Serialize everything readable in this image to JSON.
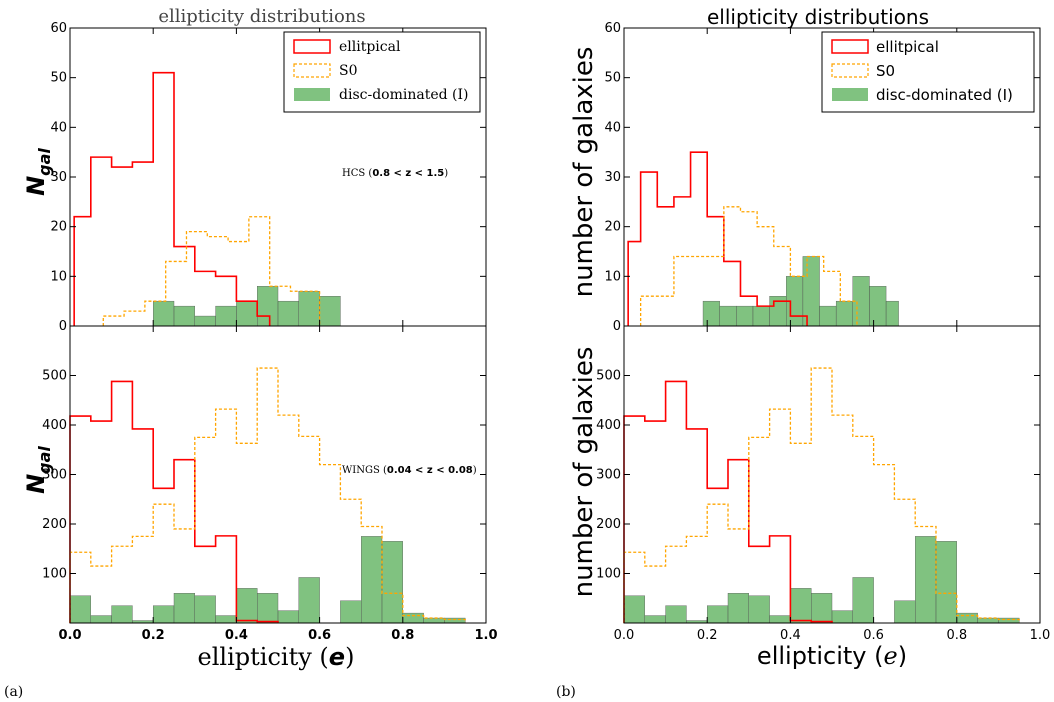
{
  "panel_labels": [
    "(a)",
    "(b)"
  ],
  "chart_data": [
    {
      "type": "histogram",
      "panel": "(a)",
      "title": "ellipticity distributions",
      "xlabel_text": "ellipticity (",
      "xlabel_symbol": "e",
      "xlabel_close": ")",
      "ylabel_main": "N",
      "ylabel_sub": "gal",
      "xlim": [
        0,
        1
      ],
      "xticks": [
        "0.0",
        "0.2",
        "0.4",
        "0.6",
        "0.8",
        "1.0"
      ],
      "legend": {
        "position": "top-right",
        "entries": [
          "ellitpical",
          "S0",
          "disc-dominated (I)"
        ]
      },
      "colors": {
        "elliptical": "#ff0000",
        "s0": "#ffa500",
        "disc": "#4aa84a"
      },
      "subplots": [
        {
          "ylim": [
            0,
            60
          ],
          "yticks": [
            "0",
            "10",
            "20",
            "30",
            "40",
            "50",
            "60"
          ],
          "annotation": {
            "sample": "HCS (",
            "range": "0.8 < z < 1.5",
            "close": ")"
          },
          "series": [
            {
              "name": "ellitpical",
              "style": "step",
              "edges": [
                0.01,
                0.05,
                0.1,
                0.15,
                0.2,
                0.25,
                0.3,
                0.35,
                0.4,
                0.45,
                0.48
              ],
              "values": [
                22,
                34,
                32,
                33,
                51,
                16,
                11,
                10,
                5,
                2
              ]
            },
            {
              "name": "S0",
              "style": "step-dashed",
              "edges": [
                0.08,
                0.13,
                0.18,
                0.23,
                0.28,
                0.33,
                0.38,
                0.43,
                0.48,
                0.53,
                0.58,
                0.6
              ],
              "values": [
                2,
                3,
                5,
                13,
                19,
                18,
                17,
                22,
                8,
                7,
                7
              ]
            },
            {
              "name": "disc-dominated (I)",
              "style": "filled",
              "edges": [
                0.2,
                0.25,
                0.3,
                0.35,
                0.4,
                0.45,
                0.5,
                0.55,
                0.6,
                0.65
              ],
              "values": [
                5,
                4,
                2,
                4,
                5,
                8,
                5,
                7,
                6
              ]
            }
          ]
        },
        {
          "ylim": [
            0,
            600
          ],
          "yticks": [
            "100",
            "200",
            "300",
            "400",
            "500"
          ],
          "annotation": {
            "sample": "WINGS (",
            "range": "0.04 < z < 0.08",
            "close": ")"
          },
          "series": [
            {
              "name": "ellitpical",
              "style": "step",
              "edges": [
                0.0,
                0.05,
                0.1,
                0.15,
                0.2,
                0.25,
                0.3,
                0.35,
                0.4,
                0.45,
                0.5
              ],
              "values": [
                418,
                408,
                488,
                392,
                272,
                330,
                155,
                176,
                5,
                3
              ]
            },
            {
              "name": "S0",
              "style": "step-dashed",
              "edges": [
                0.0,
                0.05,
                0.1,
                0.15,
                0.2,
                0.25,
                0.3,
                0.35,
                0.4,
                0.45,
                0.5,
                0.55,
                0.6,
                0.65,
                0.7,
                0.75,
                0.8,
                0.85,
                0.9,
                0.95
              ],
              "values": [
                143,
                115,
                155,
                175,
                240,
                190,
                375,
                432,
                363,
                515,
                420,
                377,
                320,
                250,
                195,
                60,
                15,
                10,
                7
              ]
            },
            {
              "name": "disc-dominated (I)",
              "style": "filled",
              "edges": [
                0.0,
                0.05,
                0.1,
                0.15,
                0.2,
                0.25,
                0.3,
                0.35,
                0.4,
                0.45,
                0.5,
                0.55,
                0.6,
                0.65,
                0.7,
                0.75,
                0.8,
                0.85,
                0.9,
                0.95
              ],
              "values": [
                55,
                15,
                35,
                5,
                35,
                60,
                55,
                15,
                70,
                60,
                25,
                92,
                0,
                45,
                175,
                165,
                20,
                10,
                10
              ]
            }
          ]
        }
      ]
    },
    {
      "type": "histogram",
      "panel": "(b)",
      "title": "ellipticity distributions",
      "xlabel_text": "ellipticity (",
      "xlabel_symbol": "e",
      "xlabel_close": ")",
      "ylabel": "number of galaxies",
      "xlim": [
        0,
        1
      ],
      "xticks": [
        "0.0",
        "0.2",
        "0.4",
        "0.6",
        "0.8",
        "1.0"
      ],
      "legend": {
        "position": "top-right",
        "entries": [
          "ellitpical",
          "S0",
          "disc-dominated (I)"
        ]
      },
      "colors": {
        "elliptical": "#ff0000",
        "s0": "#ffa500",
        "disc": "#4aa84a"
      },
      "subplots": [
        {
          "ylim": [
            0,
            60
          ],
          "yticks": [
            "0",
            "10",
            "20",
            "30",
            "40",
            "50",
            "60"
          ],
          "series": [
            {
              "name": "ellitpical",
              "style": "step",
              "edges": [
                0.01,
                0.04,
                0.08,
                0.12,
                0.16,
                0.2,
                0.24,
                0.28,
                0.32,
                0.36,
                0.4,
                0.44
              ],
              "values": [
                17,
                31,
                24,
                26,
                35,
                22,
                13,
                6,
                4,
                5,
                2
              ]
            },
            {
              "name": "S0",
              "style": "step-dashed",
              "edges": [
                0.04,
                0.08,
                0.12,
                0.16,
                0.2,
                0.24,
                0.28,
                0.32,
                0.36,
                0.4,
                0.44,
                0.48,
                0.52,
                0.56
              ],
              "values": [
                6,
                6,
                14,
                14,
                14,
                24,
                23,
                20,
                16,
                10,
                14,
                11,
                5
              ]
            },
            {
              "name": "disc-dominated (I)",
              "style": "filled",
              "edges": [
                0.19,
                0.23,
                0.27,
                0.31,
                0.35,
                0.39,
                0.43,
                0.47,
                0.51,
                0.55,
                0.59,
                0.63,
                0.66
              ],
              "values": [
                5,
                4,
                4,
                4,
                6,
                10,
                14,
                4,
                5,
                10,
                8,
                5
              ]
            }
          ]
        },
        {
          "ylim": [
            0,
            600
          ],
          "yticks": [
            "100",
            "200",
            "300",
            "400",
            "500"
          ],
          "series": [
            {
              "name": "ellitpical",
              "style": "step",
              "edges": [
                0.0,
                0.05,
                0.1,
                0.15,
                0.2,
                0.25,
                0.3,
                0.35,
                0.4,
                0.45,
                0.5
              ],
              "values": [
                418,
                408,
                488,
                392,
                272,
                330,
                155,
                176,
                5,
                3
              ]
            },
            {
              "name": "S0",
              "style": "step-dashed",
              "edges": [
                0.0,
                0.05,
                0.1,
                0.15,
                0.2,
                0.25,
                0.3,
                0.35,
                0.4,
                0.45,
                0.5,
                0.55,
                0.6,
                0.65,
                0.7,
                0.75,
                0.8,
                0.85,
                0.9,
                0.95
              ],
              "values": [
                143,
                115,
                155,
                175,
                240,
                190,
                375,
                432,
                363,
                515,
                420,
                377,
                320,
                250,
                195,
                60,
                15,
                10,
                7
              ]
            },
            {
              "name": "disc-dominated (I)",
              "style": "filled",
              "edges": [
                0.0,
                0.05,
                0.1,
                0.15,
                0.2,
                0.25,
                0.3,
                0.35,
                0.4,
                0.45,
                0.5,
                0.55,
                0.6,
                0.65,
                0.7,
                0.75,
                0.8,
                0.85,
                0.9,
                0.95
              ],
              "values": [
                55,
                15,
                35,
                5,
                35,
                60,
                55,
                15,
                70,
                60,
                25,
                92,
                0,
                45,
                175,
                165,
                20,
                10,
                10
              ]
            }
          ]
        }
      ]
    }
  ]
}
